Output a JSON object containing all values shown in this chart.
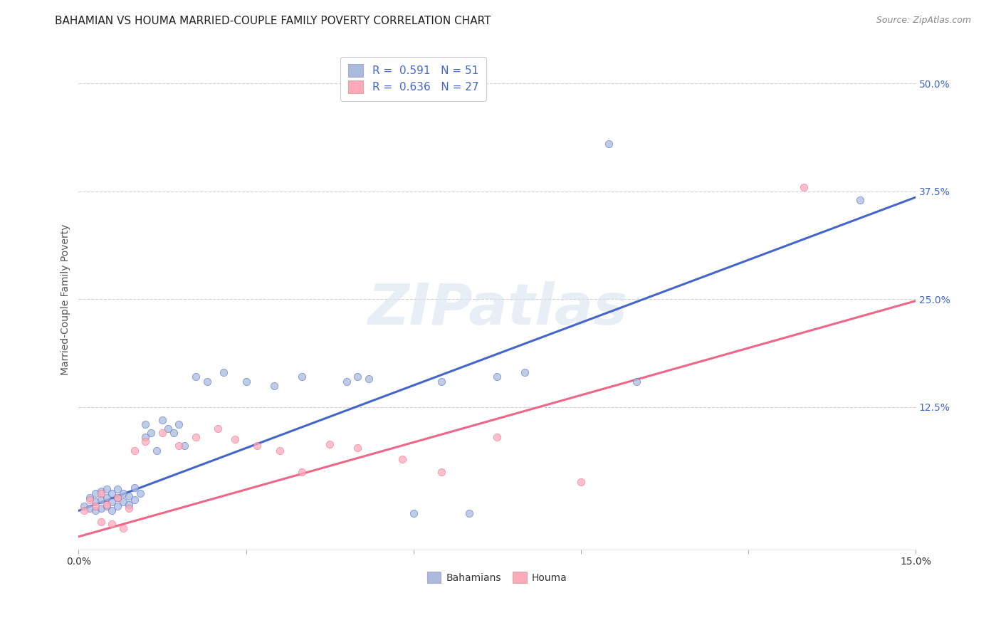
{
  "title": "BAHAMIAN VS HOUMA MARRIED-COUPLE FAMILY POVERTY CORRELATION CHART",
  "source": "Source: ZipAtlas.com",
  "ylabel_label": "Married-Couple Family Poverty",
  "x_min": 0.0,
  "x_max": 0.15,
  "y_min": -0.04,
  "y_max": 0.54,
  "x_ticks": [
    0.0,
    0.03,
    0.06,
    0.09,
    0.12,
    0.15
  ],
  "x_tick_labels": [
    "0.0%",
    "",
    "",
    "",
    "",
    "15.0%"
  ],
  "y_tick_labels_right": [
    "50.0%",
    "37.5%",
    "25.0%",
    "12.5%"
  ],
  "y_ticks_right": [
    0.5,
    0.375,
    0.25,
    0.125
  ],
  "watermark": "ZIPatlas",
  "legend_bahamian_label": "R =  0.591   N = 51",
  "legend_houma_label": "R =  0.636   N = 27",
  "bahamian_color": "#aabbdd",
  "houma_color": "#ffaabb",
  "bahamian_line_color": "#4466cc",
  "houma_line_color": "#ee6688",
  "bahamian_scatter_x": [
    0.001,
    0.002,
    0.002,
    0.003,
    0.003,
    0.003,
    0.004,
    0.004,
    0.004,
    0.005,
    0.005,
    0.005,
    0.006,
    0.006,
    0.006,
    0.007,
    0.007,
    0.007,
    0.008,
    0.008,
    0.009,
    0.009,
    0.01,
    0.01,
    0.011,
    0.012,
    0.012,
    0.013,
    0.014,
    0.015,
    0.016,
    0.017,
    0.018,
    0.019,
    0.021,
    0.023,
    0.026,
    0.03,
    0.035,
    0.04,
    0.048,
    0.05,
    0.052,
    0.06,
    0.065,
    0.07,
    0.075,
    0.08,
    0.095,
    0.14,
    0.1
  ],
  "bahamian_scatter_y": [
    0.01,
    0.008,
    0.02,
    0.005,
    0.015,
    0.025,
    0.008,
    0.018,
    0.028,
    0.01,
    0.02,
    0.03,
    0.005,
    0.015,
    0.025,
    0.01,
    0.02,
    0.03,
    0.015,
    0.025,
    0.012,
    0.022,
    0.018,
    0.032,
    0.025,
    0.09,
    0.105,
    0.095,
    0.075,
    0.11,
    0.1,
    0.095,
    0.105,
    0.08,
    0.16,
    0.155,
    0.165,
    0.155,
    0.15,
    0.16,
    0.155,
    0.16,
    0.158,
    0.002,
    0.155,
    0.002,
    0.16,
    0.165,
    0.43,
    0.365,
    0.155
  ],
  "houma_scatter_x": [
    0.001,
    0.002,
    0.003,
    0.004,
    0.004,
    0.005,
    0.006,
    0.007,
    0.008,
    0.009,
    0.01,
    0.012,
    0.015,
    0.018,
    0.021,
    0.025,
    0.028,
    0.032,
    0.036,
    0.04,
    0.045,
    0.05,
    0.058,
    0.065,
    0.075,
    0.09,
    0.13
  ],
  "houma_scatter_y": [
    0.005,
    0.018,
    0.01,
    0.025,
    -0.008,
    0.012,
    -0.01,
    0.02,
    -0.015,
    0.008,
    0.075,
    0.085,
    0.095,
    0.08,
    0.09,
    0.1,
    0.088,
    0.08,
    0.075,
    0.05,
    0.082,
    0.078,
    0.065,
    0.05,
    0.09,
    0.038,
    0.38
  ],
  "bahamian_line_x": [
    0.0,
    0.15
  ],
  "bahamian_line_y": [
    0.005,
    0.368
  ],
  "houma_line_x": [
    0.0,
    0.15
  ],
  "houma_line_y": [
    -0.025,
    0.248
  ],
  "background_color": "#ffffff",
  "grid_color": "#cccccc",
  "title_fontsize": 11,
  "axis_label_fontsize": 10,
  "tick_fontsize": 10,
  "marker_size": 55
}
